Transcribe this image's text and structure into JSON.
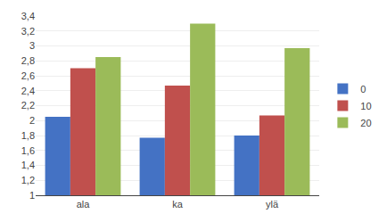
{
  "chart_data": {
    "type": "bar",
    "categories": [
      "ala",
      "ka",
      "ylä"
    ],
    "series": [
      {
        "name": "0",
        "color": "#4472C4",
        "values": [
          2.05,
          1.77,
          1.8
        ]
      },
      {
        "name": "10",
        "color": "#C0504D",
        "values": [
          2.7,
          2.47,
          2.07
        ]
      },
      {
        "name": "20",
        "color": "#9BBB59",
        "values": [
          2.85,
          3.3,
          2.97
        ]
      }
    ],
    "ylim": [
      1.0,
      3.4
    ],
    "yticks": [
      1,
      {
        "value": 1.2,
        "label": "1,2"
      },
      {
        "value": 1.4,
        "label": "1,4"
      },
      {
        "value": 1.6,
        "label": "1,6"
      },
      {
        "value": 1.8,
        "label": "1,8"
      },
      2,
      {
        "value": 2.2,
        "label": "2,2"
      },
      {
        "value": 2.4,
        "label": "2,4"
      },
      {
        "value": 2.6,
        "label": "2,6"
      },
      {
        "value": 2.8,
        "label": "2,8"
      },
      3,
      {
        "value": 3.2,
        "label": "3,2"
      },
      {
        "value": 3.4,
        "label": "3,4"
      }
    ],
    "grid": true,
    "legend": "right"
  }
}
